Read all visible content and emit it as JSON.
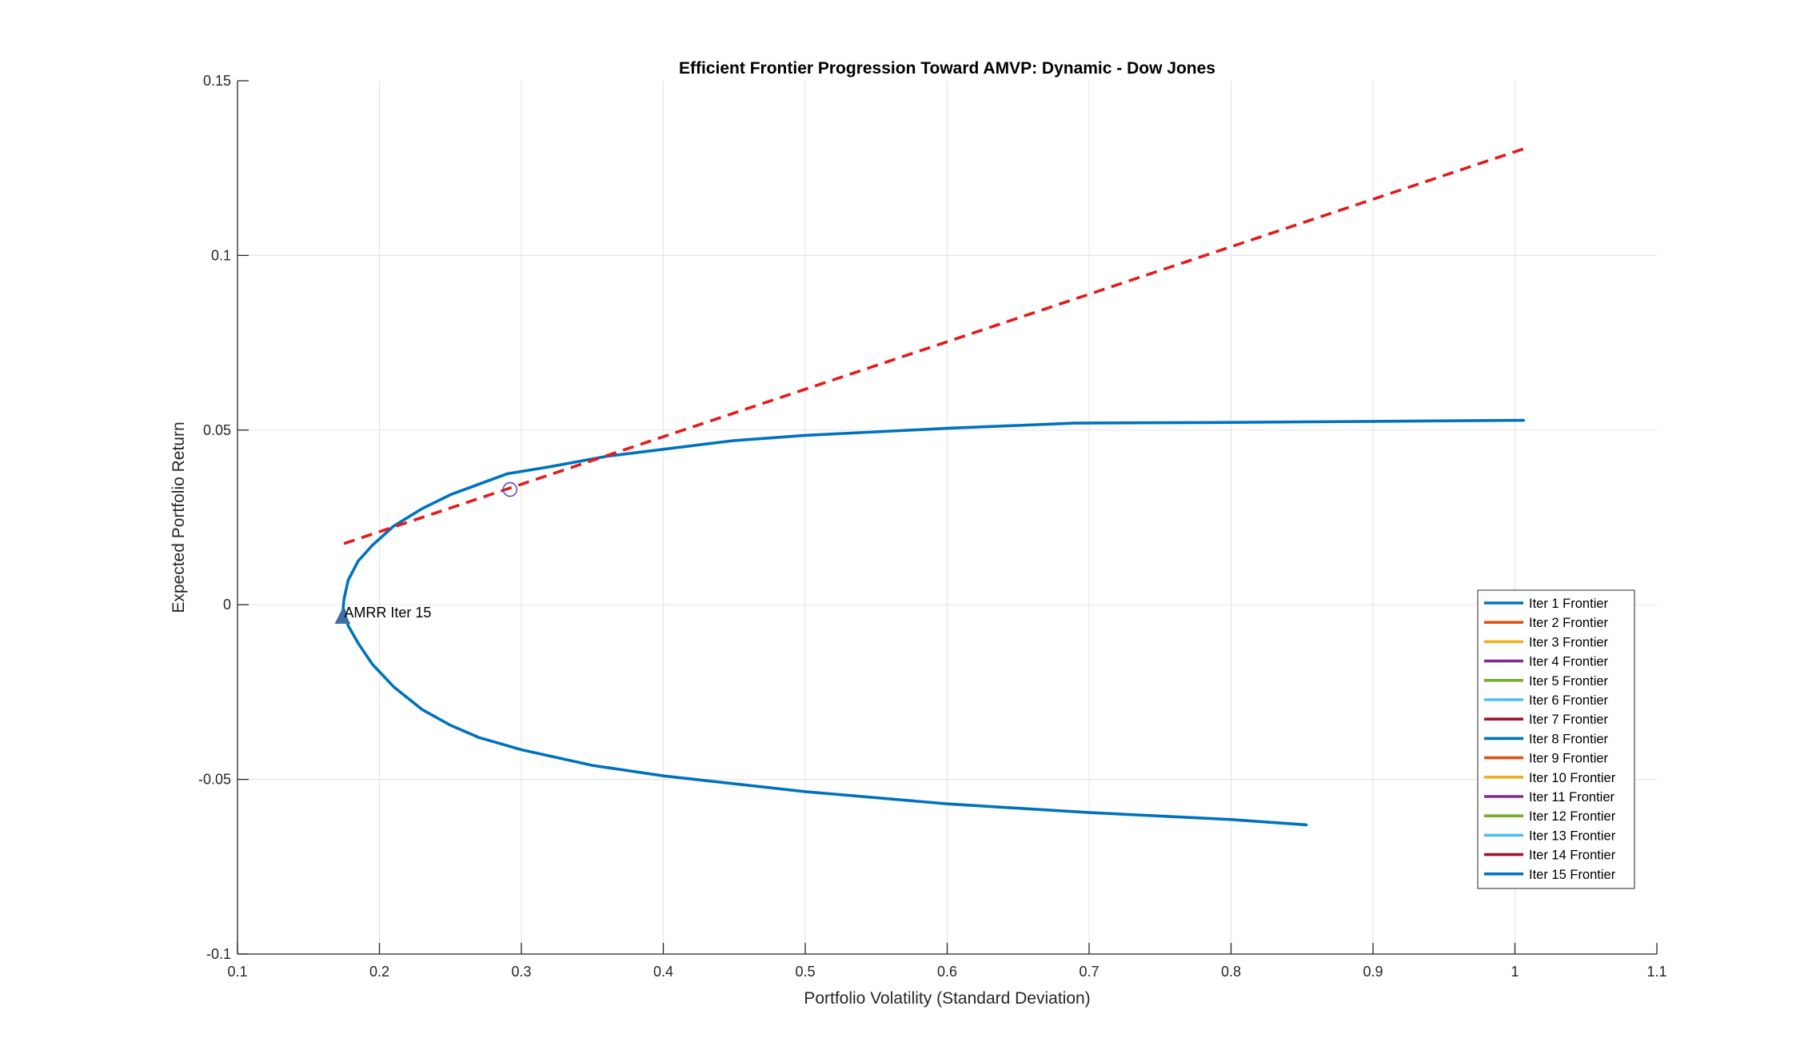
{
  "chart_data": {
    "type": "line",
    "title": "Efficient Frontier Progression Toward AMVP: Dynamic - Dow Jones",
    "xlabel": "Portfolio Volatility (Standard Deviation)",
    "ylabel": "Expected Portfolio Return",
    "xlim": [
      0.1,
      1.1
    ],
    "ylim": [
      -0.1,
      0.15
    ],
    "xticks": [
      0.1,
      0.2,
      0.3,
      0.4,
      0.5,
      0.6,
      0.7,
      0.8,
      0.9,
      1,
      1.1
    ],
    "xtick_labels": [
      "0.1",
      "0.2",
      "0.3",
      "0.4",
      "0.5",
      "0.6",
      "0.7",
      "0.8",
      "0.9",
      "1",
      "1.1"
    ],
    "yticks": [
      -0.1,
      -0.05,
      0,
      0.05,
      0.1,
      0.15
    ],
    "ytick_labels": [
      "-0.1",
      "-0.05",
      "0",
      "0.05",
      "0.1",
      "0.15"
    ],
    "grid": true,
    "legend_position": "bottom-right",
    "series": [
      {
        "name": "Iter 1 Frontier",
        "color": "#0072BD"
      },
      {
        "name": "Iter 2 Frontier",
        "color": "#D95319"
      },
      {
        "name": "Iter 3 Frontier",
        "color": "#EDB120"
      },
      {
        "name": "Iter 4 Frontier",
        "color": "#7E2F8E"
      },
      {
        "name": "Iter 5 Frontier",
        "color": "#77AC30"
      },
      {
        "name": "Iter 6 Frontier",
        "color": "#4DBEEE"
      },
      {
        "name": "Iter 7 Frontier",
        "color": "#A2142F"
      },
      {
        "name": "Iter 8 Frontier",
        "color": "#0072BD"
      },
      {
        "name": "Iter 9 Frontier",
        "color": "#D95319"
      },
      {
        "name": "Iter 10 Frontier",
        "color": "#EDB120"
      },
      {
        "name": "Iter 11 Frontier",
        "color": "#7E2F8E"
      },
      {
        "name": "Iter 12 Frontier",
        "color": "#77AC30"
      },
      {
        "name": "Iter 13 Frontier",
        "color": "#4DBEEE"
      },
      {
        "name": "Iter 14 Frontier",
        "color": "#A2142F"
      },
      {
        "name": "Iter 15 Frontier",
        "color": "#0072BD"
      }
    ],
    "frontier": {
      "color": "#0072BD",
      "x": [
        0.853,
        0.8,
        0.7,
        0.6,
        0.5,
        0.4,
        0.35,
        0.3,
        0.27,
        0.25,
        0.23,
        0.21,
        0.195,
        0.185,
        0.178,
        0.175,
        0.174,
        0.175,
        0.178,
        0.185,
        0.195,
        0.21,
        0.23,
        0.25,
        0.27,
        0.29,
        0.32,
        0.36,
        0.4,
        0.45,
        0.5,
        0.55,
        0.6,
        0.69,
        0.8,
        0.9,
        1.006
      ],
      "y": [
        -0.063,
        -0.0615,
        -0.0595,
        -0.057,
        -0.0535,
        -0.049,
        -0.046,
        -0.0415,
        -0.038,
        -0.0345,
        -0.03,
        -0.0235,
        -0.017,
        -0.011,
        -0.006,
        -0.0015,
        -0.0035,
        0.0015,
        0.007,
        0.0125,
        0.017,
        0.0225,
        0.0275,
        0.0315,
        0.0345,
        0.0375,
        0.0395,
        0.0425,
        0.0445,
        0.047,
        0.0485,
        0.0495,
        0.0505,
        0.052,
        0.0522,
        0.0525,
        0.0528
      ]
    },
    "tangent_line": {
      "color": "#E41A1C",
      "style": "dashed",
      "x": [
        0.175,
        1.006
      ],
      "y": [
        0.0175,
        0.1305
      ]
    },
    "tangency_point": {
      "x": 0.292,
      "y": 0.033,
      "marker": "circle",
      "color": "#5B4FC9"
    },
    "amvp_point": {
      "x": 0.174,
      "y": -0.0035,
      "marker": "triangle",
      "color": "#3F6FA8"
    },
    "annotation": {
      "text": "AMRR Iter 15",
      "x": 0.174,
      "y": -0.0015
    }
  }
}
